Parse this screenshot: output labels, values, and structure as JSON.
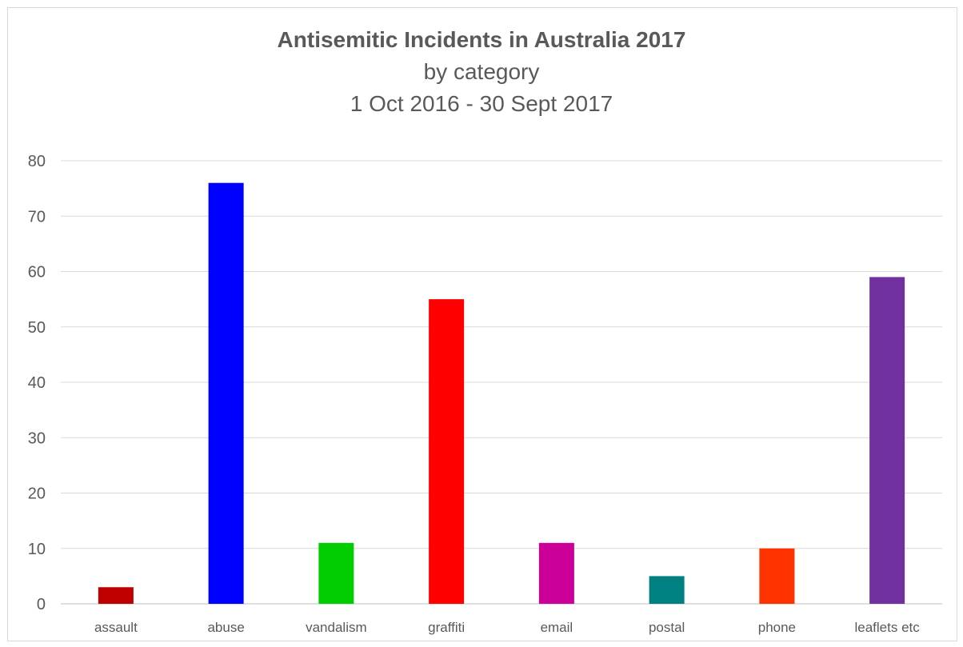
{
  "chart_data": {
    "type": "bar",
    "title": "Antisemitic Incidents in Australia 2017",
    "subtitle_lines": [
      "by category",
      "1 Oct 2016 - 30 Sept 2017"
    ],
    "xlabel": "",
    "ylabel": "",
    "ylim": [
      0,
      80
    ],
    "yticks": [
      0,
      10,
      20,
      30,
      40,
      50,
      60,
      70,
      80
    ],
    "grid": true,
    "legend": "none",
    "categories": [
      "assault",
      "abuse",
      "vandalism",
      "graffiti",
      "email",
      "postal",
      "phone",
      "leaflets etc"
    ],
    "values": [
      3,
      76,
      11,
      55,
      11,
      5,
      10,
      59
    ],
    "colors": [
      "#c00000",
      "#0000ff",
      "#00cc00",
      "#ff0000",
      "#cc0099",
      "#008080",
      "#ff3300",
      "#7030a0"
    ]
  }
}
